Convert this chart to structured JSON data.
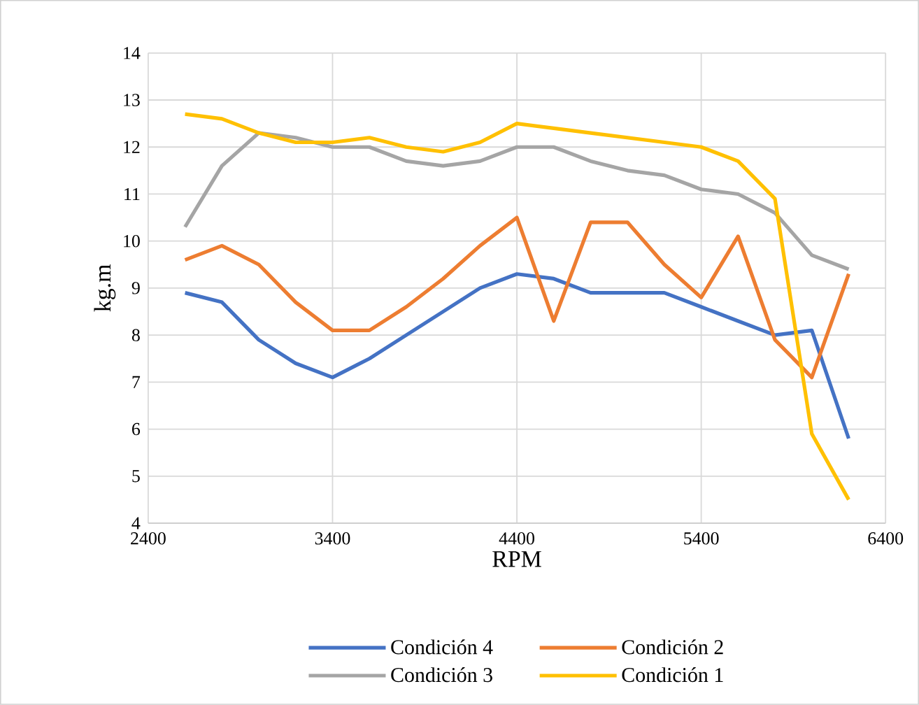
{
  "chart_data": {
    "type": "line",
    "xlabel": "RPM",
    "ylabel": "kg.m",
    "x": [
      2600,
      2800,
      3000,
      3200,
      3400,
      3600,
      3800,
      4000,
      4200,
      4400,
      4600,
      4800,
      5000,
      5200,
      5400,
      5600,
      5800,
      6000,
      6200
    ],
    "series": [
      {
        "name": "Condición 4",
        "color": "#4472c4",
        "values": [
          8.9,
          8.7,
          7.9,
          7.4,
          7.1,
          7.5,
          8.0,
          8.5,
          9.0,
          9.3,
          9.2,
          8.9,
          8.9,
          8.9,
          8.6,
          8.3,
          8.0,
          8.1,
          5.8
        ]
      },
      {
        "name": "Condición 2",
        "color": "#ed7d31",
        "values": [
          9.6,
          9.9,
          9.5,
          8.7,
          8.1,
          8.1,
          8.6,
          9.2,
          9.9,
          10.5,
          8.3,
          10.4,
          10.4,
          9.5,
          8.8,
          10.1,
          7.9,
          7.1,
          9.3
        ]
      },
      {
        "name": "Condición 3",
        "color": "#a5a5a5",
        "values": [
          10.3,
          11.6,
          12.3,
          12.2,
          12.0,
          12.0,
          11.7,
          11.6,
          11.7,
          12.0,
          12.0,
          11.7,
          11.5,
          11.4,
          11.1,
          11.0,
          10.6,
          9.7,
          9.4
        ]
      },
      {
        "name": "Condición 1",
        "color": "#ffc000",
        "values": [
          12.7,
          12.6,
          12.3,
          12.1,
          12.1,
          12.2,
          12.0,
          11.9,
          12.1,
          12.5,
          12.4,
          12.3,
          12.2,
          12.1,
          12.0,
          11.7,
          10.9,
          5.9,
          4.5
        ]
      }
    ],
    "xlim": [
      2400,
      6400
    ],
    "xticks": [
      2400,
      3400,
      4400,
      5400,
      6400
    ],
    "ylim": [
      4,
      14
    ],
    "yticks": [
      4,
      5,
      6,
      7,
      8,
      9,
      10,
      11,
      12,
      13,
      14
    ],
    "grid": true,
    "legend": "bottom",
    "marker": "none",
    "line_style": "solid"
  }
}
